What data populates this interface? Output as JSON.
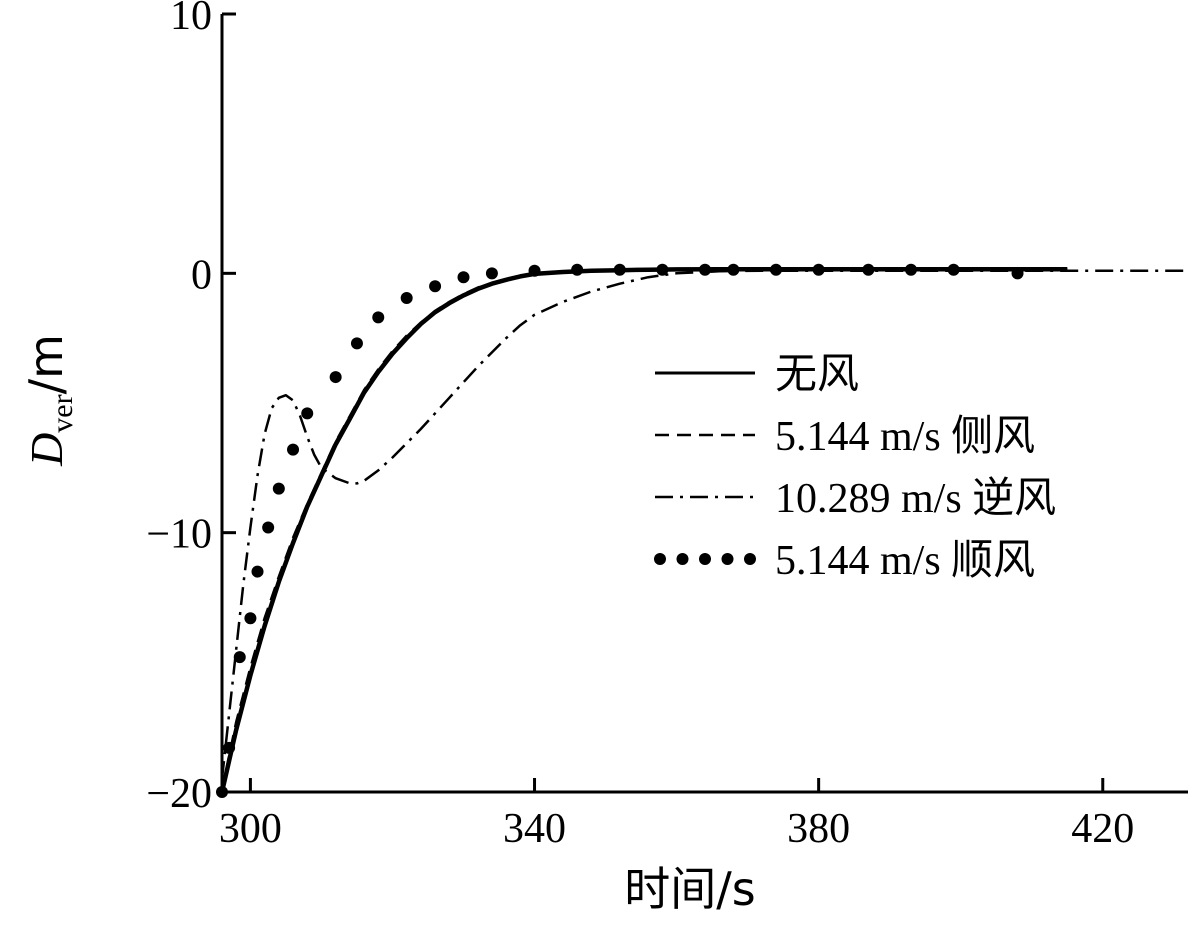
{
  "chart_data": {
    "type": "line",
    "title": "",
    "xlabel": "时间/s",
    "ylabel": {
      "symbol": "D",
      "subscript": "ver",
      "unit": "/m"
    },
    "xlim": [
      296,
      432
    ],
    "ylim": [
      -20,
      10
    ],
    "xticks": [
      300,
      340,
      380,
      420
    ],
    "yticks": [
      10,
      0,
      -10,
      -20
    ],
    "ytick_labels": [
      "10",
      "0",
      "−10",
      "−20"
    ],
    "grid": false,
    "legend_position": "right",
    "series": [
      {
        "name": "无风",
        "style": "solid",
        "x": [
          296,
          297,
          298,
          300,
          302,
          304,
          306,
          308,
          310,
          312,
          314,
          316,
          318,
          320,
          322,
          324,
          326,
          328,
          330,
          332,
          334,
          336,
          338,
          340,
          344,
          348,
          352,
          356,
          360,
          366,
          372,
          380,
          390,
          400,
          410,
          415
        ],
        "y": [
          -20,
          -18.8,
          -17.6,
          -15.5,
          -13.6,
          -11.9,
          -10.4,
          -9.0,
          -7.8,
          -6.6,
          -5.6,
          -4.6,
          -3.8,
          -3.1,
          -2.5,
          -1.95,
          -1.5,
          -1.15,
          -0.85,
          -0.6,
          -0.4,
          -0.25,
          -0.12,
          -0.02,
          0.05,
          0.1,
          0.12,
          0.14,
          0.15,
          0.16,
          0.16,
          0.16,
          0.16,
          0.16,
          0.16,
          0.16
        ]
      },
      {
        "name": "5.144 m/s 侧风",
        "style": "dashed",
        "x": [
          296,
          297,
          298,
          300,
          302,
          304,
          306,
          308,
          310,
          312,
          314,
          316,
          318,
          320,
          322,
          324,
          326,
          328,
          330,
          332,
          334,
          336,
          338,
          340,
          344,
          348,
          352,
          356,
          360,
          366,
          372,
          380,
          390,
          400,
          410,
          415
        ],
        "y": [
          -20,
          -18.6,
          -17.3,
          -15.2,
          -13.3,
          -11.7,
          -10.2,
          -8.9,
          -7.7,
          -6.5,
          -5.5,
          -4.5,
          -3.7,
          -3.0,
          -2.4,
          -1.9,
          -1.45,
          -1.1,
          -0.8,
          -0.55,
          -0.38,
          -0.22,
          -0.1,
          0.0,
          0.06,
          0.1,
          0.12,
          0.14,
          0.15,
          0.16,
          0.16,
          0.16,
          0.16,
          0.16,
          0.16,
          0.16
        ]
      },
      {
        "name": "10.289 m/s 逆风",
        "style": "dashdot",
        "x": [
          296,
          297,
          298,
          299,
          300,
          301,
          302,
          303,
          304,
          305,
          306,
          307,
          308,
          309,
          310,
          312,
          314,
          315,
          316,
          318,
          320,
          324,
          328,
          332,
          336,
          338,
          340,
          344,
          348,
          352,
          356,
          360,
          366,
          372,
          380,
          390,
          400,
          410,
          420,
          428,
          432
        ],
        "y": [
          -19.5,
          -17.0,
          -14.5,
          -12.0,
          -9.8,
          -7.8,
          -6.2,
          -5.2,
          -4.8,
          -4.7,
          -4.9,
          -5.5,
          -6.3,
          -7.0,
          -7.5,
          -7.9,
          -8.1,
          -8.1,
          -8.0,
          -7.6,
          -7.1,
          -6.0,
          -4.8,
          -3.6,
          -2.5,
          -2.0,
          -1.6,
          -1.1,
          -0.7,
          -0.4,
          -0.15,
          0.0,
          0.08,
          0.1,
          0.1,
          0.1,
          0.1,
          0.1,
          0.1,
          0.1,
          0.1
        ]
      },
      {
        "name": "5.144 m/s 顺风",
        "style": "dotted",
        "x": [
          296,
          297,
          298.5,
          300,
          301,
          302.5,
          304,
          306,
          308,
          312,
          315,
          318,
          322,
          326,
          330,
          334,
          340,
          346,
          352,
          358,
          364,
          368,
          374,
          380,
          387,
          393,
          399,
          408
        ],
        "y": [
          -20,
          -18.3,
          -14.8,
          -13.3,
          -11.5,
          -9.8,
          -8.3,
          -6.8,
          -5.4,
          -4.0,
          -2.7,
          -1.7,
          -0.95,
          -0.5,
          -0.15,
          0.0,
          0.1,
          0.14,
          0.14,
          0.14,
          0.14,
          0.14,
          0.14,
          0.14,
          0.14,
          0.14,
          0.14,
          0.0
        ]
      }
    ]
  }
}
